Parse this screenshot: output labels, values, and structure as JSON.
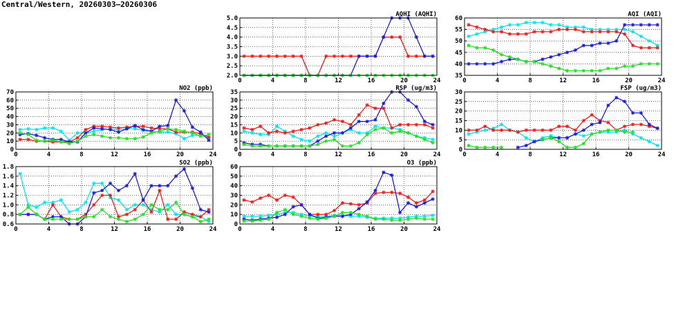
{
  "page": {
    "title": "Central/Western, 20260303–20260306"
  },
  "colors": {
    "s1": "#00e5ee",
    "s2": "#ee1c1c",
    "s3": "#1c1cd8",
    "s4": "#22e022",
    "grid": "#000000"
  },
  "chart_data": [
    {
      "id": "aqhi",
      "type": "line",
      "title": "AQHI (AQHI)",
      "xlim": [
        0,
        24
      ],
      "xticks": [
        0,
        4,
        8,
        12,
        16,
        20,
        24
      ],
      "ylim": [
        2,
        5
      ],
      "yticks": [
        "2.0",
        "2.5",
        "3.0",
        "3.5",
        "4.0",
        "4.5",
        "5.0"
      ],
      "grid": true,
      "series": [
        {
          "color": "s1",
          "values": []
        },
        {
          "color": "s2",
          "values": [
            3,
            3,
            3,
            3,
            3,
            3,
            3,
            3,
            2,
            2,
            3,
            3,
            3,
            3,
            3,
            3,
            3,
            4,
            4,
            4,
            3,
            3,
            3,
            3
          ]
        },
        {
          "color": "s3",
          "values": [
            2,
            2,
            2,
            2,
            2,
            2,
            2,
            2,
            2,
            2,
            2,
            2,
            2,
            2,
            3,
            3,
            3,
            4,
            5,
            5,
            5,
            4,
            3,
            3
          ]
        },
        {
          "color": "s4",
          "values": [
            2,
            2,
            2,
            2,
            2,
            2,
            2,
            2,
            2,
            2,
            2,
            2,
            2,
            2,
            2,
            2,
            2,
            2,
            2,
            2,
            2,
            2,
            2,
            2
          ]
        }
      ]
    },
    {
      "id": "aqi",
      "type": "line",
      "title": "AQI (AQI)",
      "xlim": [
        0,
        24
      ],
      "xticks": [
        0,
        4,
        8,
        12,
        16,
        20,
        24
      ],
      "ylim": [
        35,
        60
      ],
      "yticks": [
        "35",
        "40",
        "45",
        "50",
        "55",
        "60"
      ],
      "grid": true,
      "series": [
        {
          "color": "s1",
          "values": [
            52,
            53,
            54,
            55,
            56,
            57,
            57,
            58,
            58,
            58,
            57,
            57,
            56,
            56,
            56,
            55,
            55,
            55,
            55,
            55,
            54,
            52,
            50,
            48
          ]
        },
        {
          "color": "s2",
          "values": [
            57,
            56,
            55,
            54,
            54,
            53,
            53,
            53,
            54,
            54,
            54,
            55,
            55,
            55,
            54,
            54,
            54,
            54,
            54,
            53,
            48,
            47,
            47,
            47
          ]
        },
        {
          "color": "s3",
          "values": [
            40,
            40,
            40,
            40,
            41,
            42,
            42,
            41,
            41,
            42,
            43,
            44,
            45,
            46,
            48,
            48,
            49,
            49,
            50,
            57,
            57,
            57,
            57,
            57
          ]
        },
        {
          "color": "s4",
          "values": [
            48,
            47,
            47,
            46,
            44,
            43,
            42,
            41,
            41,
            40,
            39,
            38,
            37,
            37,
            37,
            37,
            37,
            38,
            38,
            39,
            39,
            40,
            40,
            40
          ]
        }
      ]
    },
    {
      "id": "no2",
      "type": "line",
      "title": "NO2 (ppb)",
      "xlim": [
        0,
        24
      ],
      "xticks": [
        0,
        4,
        8,
        12,
        16,
        20,
        24
      ],
      "ylim": [
        0,
        70
      ],
      "yticks": [
        "0",
        "10",
        "20",
        "30",
        "40",
        "50",
        "60",
        "70"
      ],
      "grid": true,
      "series": [
        {
          "color": "s1",
          "values": [
            24,
            25,
            24,
            26,
            26,
            22,
            11,
            20,
            20,
            22,
            24,
            25,
            24,
            25,
            25,
            23,
            22,
            21,
            21,
            19,
            13,
            17,
            17,
            14
          ]
        },
        {
          "color": "s2",
          "values": [
            12,
            12,
            10,
            10,
            9,
            9,
            9,
            14,
            24,
            28,
            28,
            27,
            26,
            27,
            28,
            28,
            26,
            25,
            25,
            21,
            21,
            21,
            19,
            15
          ]
        },
        {
          "color": "s3",
          "values": [
            18,
            19,
            17,
            14,
            12,
            12,
            9,
            9,
            20,
            26,
            25,
            24,
            21,
            25,
            29,
            24,
            22,
            28,
            29,
            60,
            47,
            27,
            21,
            11
          ]
        },
        {
          "color": "s4",
          "values": [
            20,
            18,
            11,
            10,
            11,
            9,
            7,
            10,
            16,
            18,
            16,
            14,
            14,
            13,
            13,
            15,
            20,
            22,
            25,
            24,
            22,
            20,
            16,
            18
          ]
        }
      ]
    },
    {
      "id": "rsp",
      "type": "line",
      "title": "RSP (ug/m3)",
      "xlim": [
        0,
        24
      ],
      "xticks": [
        0,
        4,
        8,
        12,
        16,
        20,
        24
      ],
      "ylim": [
        0,
        35
      ],
      "yticks": [
        "0",
        "5",
        "10",
        "15",
        "20",
        "25",
        "30",
        "35"
      ],
      "grid": true,
      "series": [
        {
          "color": "s1",
          "values": [
            11,
            10,
            9,
            9,
            14,
            11,
            8,
            6,
            5,
            8,
            10,
            8,
            10,
            12,
            10,
            10,
            14,
            13,
            13,
            12,
            10,
            8,
            7,
            6
          ]
        },
        {
          "color": "s2",
          "values": [
            13,
            12,
            14,
            10,
            11,
            10,
            11,
            12,
            13,
            15,
            16,
            18,
            17,
            15,
            21,
            27,
            25,
            25,
            13,
            15,
            15,
            15,
            15,
            13
          ]
        },
        {
          "color": "s3",
          "values": [
            4,
            3,
            3,
            2,
            2,
            2,
            2,
            2,
            2,
            5,
            8,
            10,
            10,
            13,
            17,
            17,
            18,
            28,
            35,
            35,
            30,
            26,
            17,
            15
          ]
        },
        {
          "color": "s4",
          "values": [
            3,
            2,
            2,
            2,
            2,
            2,
            2,
            2,
            2,
            3,
            5,
            6,
            2,
            2,
            4,
            9,
            12,
            13,
            10,
            11,
            10,
            8,
            6,
            4
          ]
        }
      ]
    },
    {
      "id": "fsp",
      "type": "line",
      "title": "FSP (ug/m3)",
      "xlim": [
        0,
        24
      ],
      "xticks": [
        0,
        4,
        8,
        12,
        16,
        20,
        24
      ],
      "ylim": [
        0,
        30
      ],
      "yticks": [
        "0",
        "5",
        "10",
        "15",
        "20",
        "25",
        "30"
      ],
      "grid": true,
      "series": [
        {
          "color": "s1",
          "values": [
            8,
            9,
            10,
            11,
            13,
            10,
            9,
            6,
            4,
            6,
            7,
            6,
            6,
            8,
            7,
            8,
            9,
            9,
            9,
            10,
            8,
            6,
            4,
            2
          ]
        },
        {
          "color": "s2",
          "values": [
            10,
            10,
            12,
            10,
            10,
            10,
            9,
            10,
            10,
            10,
            10,
            12,
            12,
            10,
            15,
            18,
            15,
            14,
            10,
            12,
            13,
            13,
            12,
            11
          ]
        },
        {
          "color": "s3",
          "values": [
            null,
            null,
            null,
            null,
            null,
            null,
            1,
            2,
            4,
            5,
            6,
            6,
            6,
            8,
            10,
            13,
            14,
            23,
            27,
            25,
            19,
            19,
            13,
            11
          ]
        },
        {
          "color": "s4",
          "values": [
            2,
            1,
            1,
            1,
            1,
            null,
            null,
            null,
            null,
            5,
            6,
            4,
            1,
            1,
            3,
            8,
            9,
            10,
            10,
            9,
            9,
            null,
            null,
            null
          ]
        }
      ]
    },
    {
      "id": "so2",
      "type": "line",
      "title": "SO2 (ppb)",
      "xlim": [
        0,
        24
      ],
      "xticks": [
        0,
        4,
        8,
        12,
        16,
        20,
        24
      ],
      "ylim": [
        0.6,
        1.8
      ],
      "yticks": [
        "0.6",
        "0.8",
        "1.0",
        "1.2",
        "1.4",
        "1.6",
        "1.8"
      ],
      "grid": true,
      "series": [
        {
          "color": "s1",
          "values": [
            1.65,
            1.0,
            0.95,
            1.05,
            1.05,
            1.1,
            0.85,
            0.9,
            1.05,
            1.45,
            1.45,
            1.15,
            1.1,
            0.9,
            1.0,
            1.0,
            0.9,
            0.85,
            1.0,
            0.8,
            0.8,
            0.75,
            0.75,
            0.65
          ]
        },
        {
          "color": "s2",
          "values": [
            0.8,
            0.8,
            0.8,
            0.7,
            1.0,
            0.75,
            0.7,
            0.7,
            0.8,
            1.0,
            1.2,
            1.2,
            0.75,
            0.8,
            0.9,
            1.1,
            0.85,
            1.3,
            0.7,
            0.7,
            0.85,
            0.8,
            0.75,
            0.9
          ]
        },
        {
          "color": "s3",
          "values": [
            0.8,
            0.8,
            0.8,
            0.7,
            0.75,
            0.75,
            0.6,
            0.6,
            0.75,
            1.25,
            1.3,
            1.45,
            1.3,
            1.4,
            1.65,
            1.1,
            1.4,
            1.4,
            1.4,
            1.6,
            1.75,
            1.35,
            0.9,
            0.85
          ]
        },
        {
          "color": "s4",
          "values": [
            0.8,
            0.95,
            0.8,
            0.7,
            0.7,
            0.7,
            0.7,
            0.7,
            0.75,
            0.75,
            0.9,
            0.75,
            0.7,
            0.65,
            0.7,
            0.8,
            1.0,
            0.9,
            0.9,
            1.05,
            0.8,
            0.75,
            0.65,
            0.7
          ]
        }
      ]
    },
    {
      "id": "o3",
      "type": "line",
      "title": "O3 (ppb)",
      "xlim": [
        0,
        24
      ],
      "xticks": [
        0,
        4,
        8,
        12,
        16,
        20,
        24
      ],
      "ylim": [
        0,
        60
      ],
      "yticks": [
        "0",
        "10",
        "20",
        "30",
        "40",
        "50",
        "60"
      ],
      "grid": true,
      "series": [
        {
          "color": "s1",
          "values": [
            8,
            8,
            8,
            9,
            10,
            12,
            12,
            10,
            8,
            8,
            8,
            9,
            9,
            8,
            8,
            7,
            6,
            6,
            6,
            6,
            7,
            8,
            8,
            9
          ]
        },
        {
          "color": "s2",
          "values": [
            25,
            23,
            27,
            30,
            25,
            30,
            28,
            20,
            10,
            10,
            10,
            14,
            22,
            21,
            20,
            22,
            32,
            33,
            33,
            32,
            28,
            22,
            25,
            34
          ]
        },
        {
          "color": "s3",
          "values": [
            5,
            4,
            5,
            6,
            7,
            10,
            18,
            20,
            10,
            6,
            7,
            8,
            8,
            10,
            16,
            23,
            35,
            54,
            51,
            12,
            22,
            18,
            22,
            26
          ]
        },
        {
          "color": "s4",
          "values": [
            3,
            3,
            4,
            5,
            12,
            15,
            10,
            8,
            6,
            5,
            6,
            8,
            12,
            12,
            10,
            8,
            5,
            5,
            4,
            4,
            5,
            6,
            5,
            5
          ]
        }
      ]
    }
  ]
}
